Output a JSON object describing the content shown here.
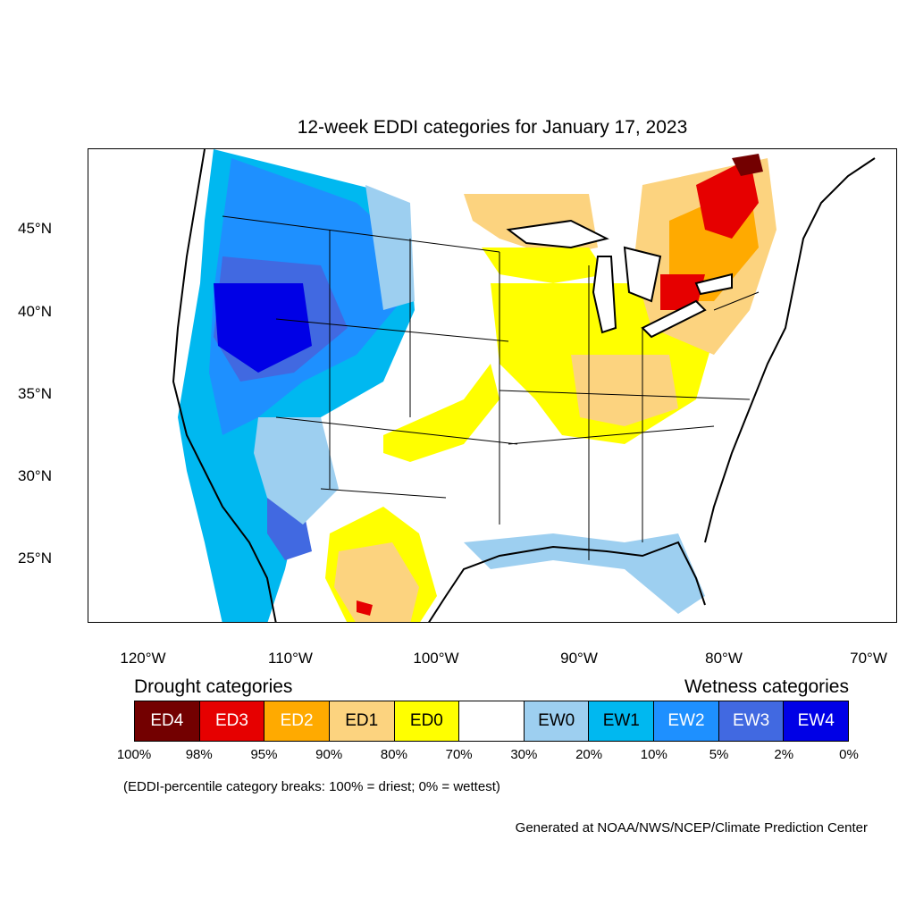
{
  "title": "12-week EDDI categories for January 17, 2023",
  "map": {
    "lat_labels": [
      "45°N",
      "40°N",
      "35°N",
      "30°N",
      "25°N"
    ],
    "lon_labels": [
      "120°W",
      "110°W",
      "100°W",
      "90°W",
      "80°W",
      "70°W"
    ]
  },
  "legend": {
    "drought_heading": "Drought categories",
    "wetness_heading": "Wetness categories",
    "categories": [
      {
        "label": "ED4",
        "color": "#730000",
        "text_color": "#ffffff"
      },
      {
        "label": "ED3",
        "color": "#e60000",
        "text_color": "#ffffff"
      },
      {
        "label": "ED2",
        "color": "#ffaa00",
        "text_color": "#ffffff"
      },
      {
        "label": "ED1",
        "color": "#fcd37f",
        "text_color": "#000000"
      },
      {
        "label": "ED0",
        "color": "#ffff00",
        "text_color": "#000000"
      },
      {
        "label": "",
        "color": "#ffffff",
        "text_color": "#000000"
      },
      {
        "label": "EW0",
        "color": "#9dcff0",
        "text_color": "#000000"
      },
      {
        "label": "EW1",
        "color": "#00b8f0",
        "text_color": "#000000"
      },
      {
        "label": "EW2",
        "color": "#1e90ff",
        "text_color": "#ffffff"
      },
      {
        "label": "EW3",
        "color": "#4169e1",
        "text_color": "#ffffff"
      },
      {
        "label": "EW4",
        "color": "#0000e6",
        "text_color": "#ffffff"
      }
    ],
    "breaks": [
      "100%",
      "98%",
      "95%",
      "90%",
      "80%",
      "70%",
      "30%",
      "20%",
      "10%",
      "5%",
      "2%",
      "0%"
    ]
  },
  "note": "(EDDI-percentile category breaks: 100% = driest; 0% = wettest)",
  "credit": "Generated at NOAA/NWS/NCEP/Climate Prediction Center"
}
